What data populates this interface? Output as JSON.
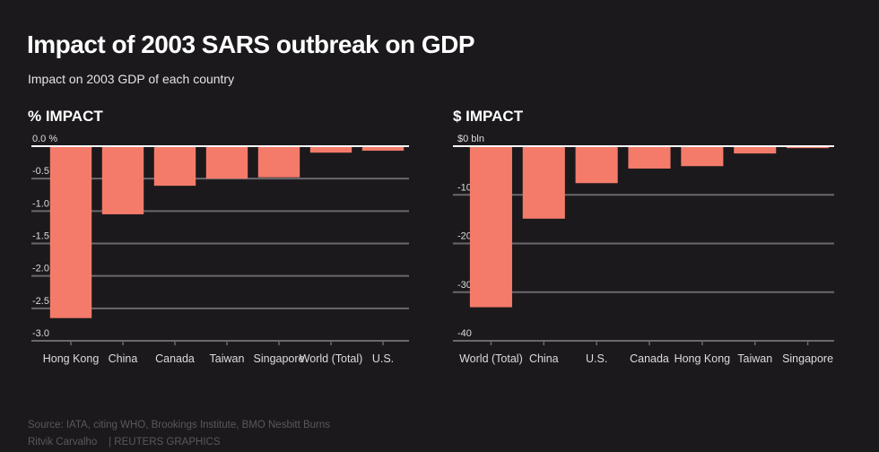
{
  "header": {
    "title": "Impact of 2003 SARS outbreak on GDP",
    "subtitle": "Impact on 2003 GDP of each country"
  },
  "colors": {
    "background": "#1b191c",
    "bar": "#f47b6a",
    "zero_line": "#ffffff",
    "gridline": "#6a686c",
    "tick_label": "#dcdcdc"
  },
  "chart_data": [
    {
      "type": "bar",
      "title": "% IMPACT",
      "xlabel": "",
      "ylabel": "",
      "categories": [
        "Hong Kong",
        "China",
        "Canada",
        "Taiwan",
        "Singapore",
        "World (Total)",
        "U.S."
      ],
      "values": [
        -2.65,
        -1.05,
        -0.61,
        -0.5,
        -0.48,
        -0.1,
        -0.07
      ],
      "ylim": [
        -3.0,
        0.0
      ],
      "yticks": [
        0.0,
        -0.5,
        -1.0,
        -1.5,
        -2.0,
        -2.5,
        -3.0
      ],
      "ytick_labels": [
        "0.0 %",
        "-0.5",
        "-1.0",
        "-1.5",
        "-2.0",
        "-2.5",
        "-3.0"
      ],
      "grid": true
    },
    {
      "type": "bar",
      "title": "$ IMPACT",
      "xlabel": "",
      "ylabel": "",
      "categories": [
        "World (Total)",
        "China",
        "U.S.",
        "Canada",
        "Hong Kong",
        "Taiwan",
        "Singapore"
      ],
      "values": [
        -33.1,
        -14.9,
        -7.6,
        -4.6,
        -4.1,
        -1.5,
        -0.4
      ],
      "ylim": [
        -40,
        0
      ],
      "yticks": [
        0,
        -10,
        -20,
        -30,
        -40
      ],
      "ytick_labels": [
        "$0 bln",
        "-10",
        "-20",
        "-30",
        "-40"
      ],
      "grid": true
    }
  ],
  "footer": {
    "source": "Source: IATA, citing WHO, Brookings Institute, BMO Nesbitt Burns",
    "credit": "Ritvik Carvalho    | REUTERS GRAPHICS"
  }
}
